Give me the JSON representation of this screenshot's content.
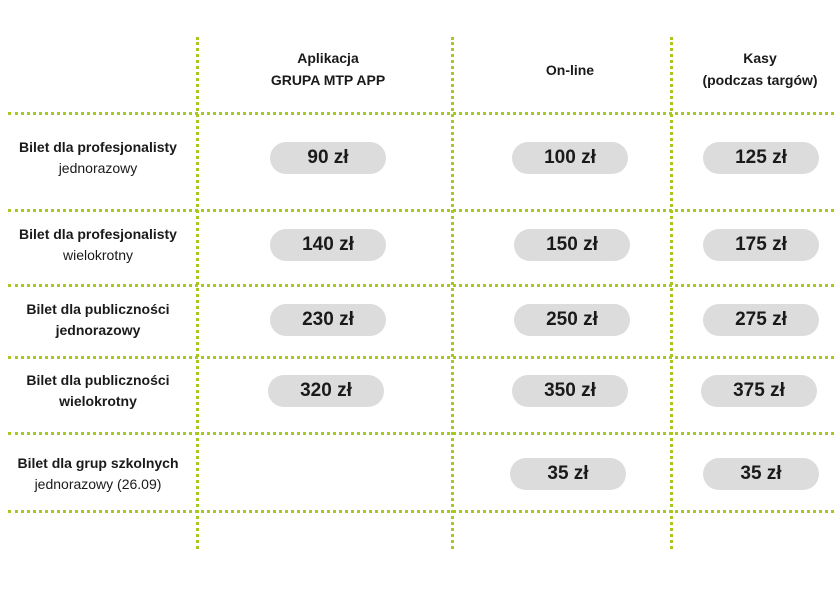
{
  "columns": [
    {
      "line1": "Aplikacja",
      "line2": "GRUPA MTP APP"
    },
    {
      "line1": "On-line",
      "line2": ""
    },
    {
      "line1": "Kasy",
      "line2": "(podczas  targów)"
    }
  ],
  "rows": [
    {
      "title": "Bilet dla profesjonalisty",
      "subtitle": "jednorazowy",
      "subtitle_bold": false,
      "prices": [
        "90 zł",
        "100 zł",
        "125 zł"
      ]
    },
    {
      "title": "Bilet dla profesjonalisty",
      "subtitle": "wielokrotny",
      "subtitle_bold": false,
      "prices": [
        "140 zł",
        "150 zł",
        "175 zł"
      ]
    },
    {
      "title": "Bilet dla publiczności",
      "subtitle": "jednorazowy",
      "subtitle_bold": true,
      "prices": [
        "230 zł",
        "250 zł",
        "275 zł"
      ]
    },
    {
      "title": "Bilet dla publiczności",
      "subtitle": "wielokrotny",
      "subtitle_bold": true,
      "prices": [
        "320 zł",
        "350 zł",
        "375 zł"
      ]
    },
    {
      "title": "Bilet dla grup szkolnych",
      "subtitle": "jednorazowy (26.09)",
      "subtitle_bold": false,
      "prices": [
        null,
        "35 zł",
        "35 zł"
      ]
    }
  ],
  "colors": {
    "accent": "#a6c91f",
    "pill": "#dcdcdc"
  }
}
